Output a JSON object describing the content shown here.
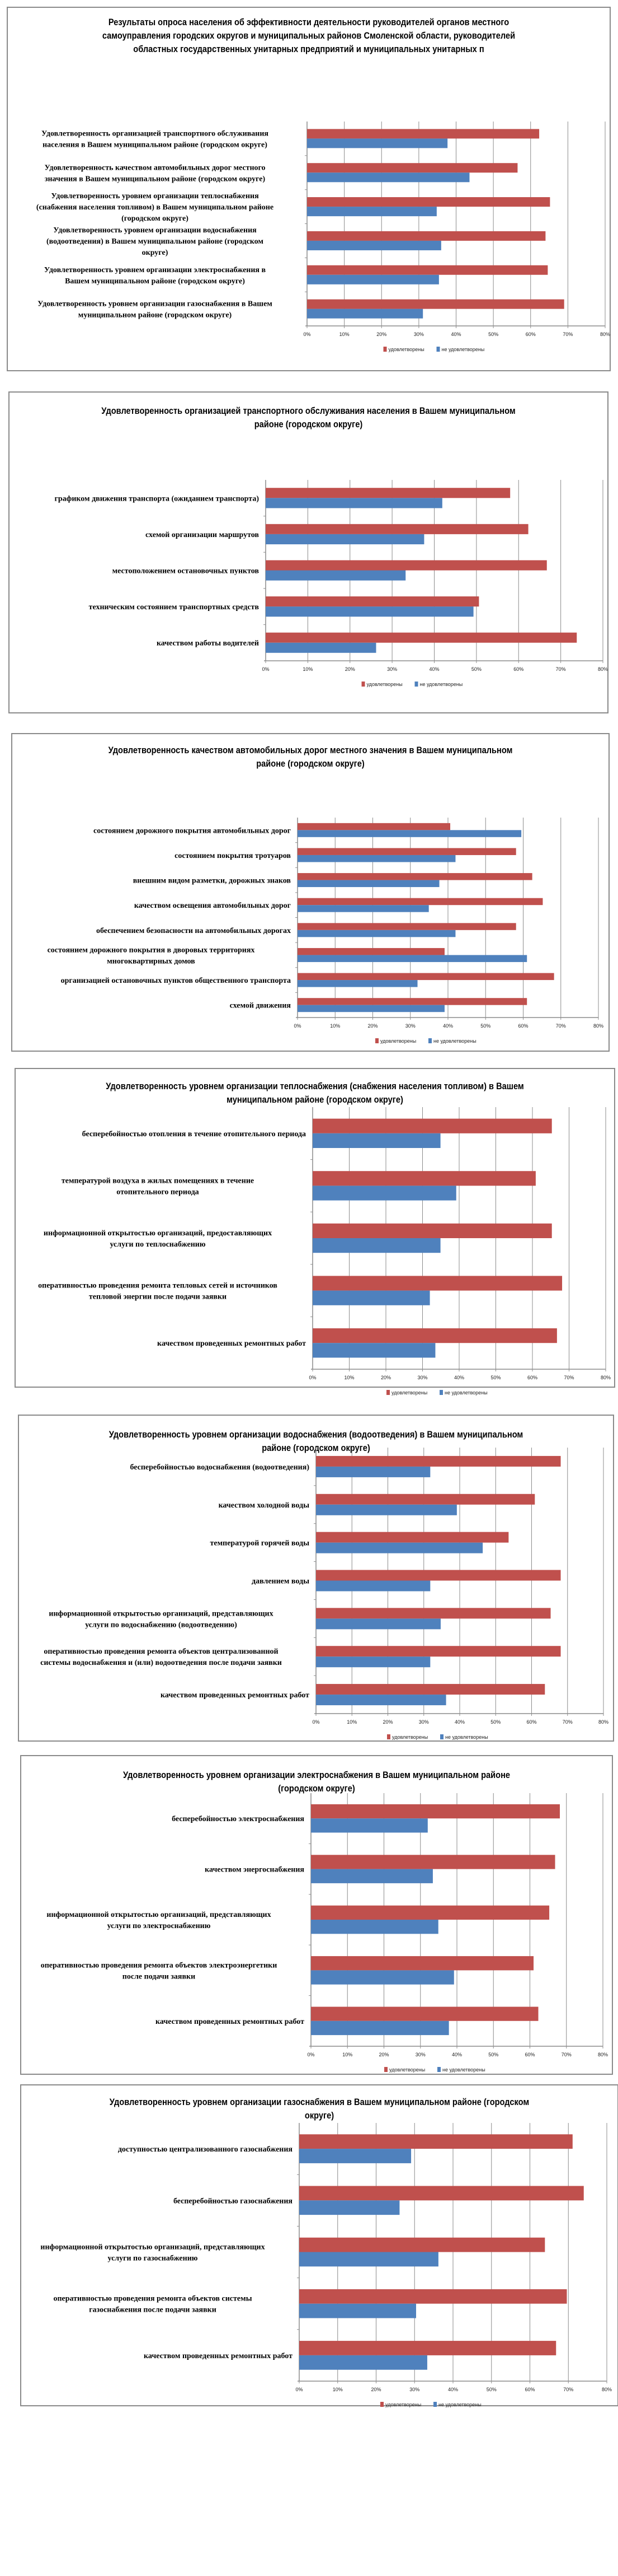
{
  "legend": {
    "satisfied": "удовлетворены",
    "not_satisfied": "не удовлетворены"
  },
  "colors": {
    "satisfied": "#c0504d",
    "not_satisfied": "#4f81bd",
    "grid": "#8c8c8c"
  },
  "chart_data": [
    {
      "type": "bar",
      "orientation": "horizontal",
      "title": "Результаты опроса населения об эффективности деятельности руководителей органов местного самоуправления городских округов и муниципальных районов Смоленской области, руководителей областных государственных унитарных предприятий и муниципальных унитарных п",
      "title_lines": [
        "Результаты опроса населения об эффективности деятельности руководителей органов местного",
        "самоуправления городских округов и муниципальных районов Смоленской области, руководителей",
        "областных государственных унитарных предприятий и муниципальных унитарных п"
      ],
      "xlim": [
        0,
        80
      ],
      "xticks": [
        "0%",
        "10%",
        "20%",
        "30%",
        "40%",
        "50%",
        "60%",
        "70%",
        "80%"
      ],
      "grid": true,
      "legend_position": "bottom",
      "categories": [
        [
          "Удовлетворенность организацией транспортного обслуживания",
          "населения в Вашем муниципальном районе (городском округе)"
        ],
        [
          "Удовлетворенность качеством автомобильных дорог местного",
          "значения в Вашем муниципальном районе (городском округе)"
        ],
        [
          "Удовлетворенность уровнем организации теплоснабжения",
          "(снабжения населения топливом) в Вашем муниципальном районе",
          "(городском округе)"
        ],
        [
          "Удовлетворенность уровнем организации водоснабжения",
          "(водоотведения) в Вашем муниципальном районе (городском",
          "округе)"
        ],
        [
          "Удовлетворенность уровнем организации электроснабжения в",
          "Вашем муниципальном районе (городском округе)"
        ],
        [
          "Удовлетворенность уровнем организации газоснабжения в Вашем",
          "муниципальном районе (городском округе)"
        ]
      ],
      "series": [
        {
          "name": "удовлетворены",
          "values": [
            62.3,
            56.5,
            65.2,
            64.0,
            64.6,
            69.0
          ]
        },
        {
          "name": "не удовлетворены",
          "values": [
            37.7,
            43.6,
            34.8,
            36.0,
            35.4,
            31.1
          ]
        }
      ]
    },
    {
      "type": "bar",
      "orientation": "horizontal",
      "title": "Удовлетворенность организацией транспортного обслуживания населения в Вашем муниципальном районе (городском округе)",
      "title_lines": [
        "Удовлетворенность организацией транспортного обслуживания населения в Вашем муниципальном",
        "районе (городском округе)"
      ],
      "xlim": [
        0,
        80
      ],
      "xticks": [
        "0%",
        "10%",
        "20%",
        "30%",
        "40%",
        "50%",
        "60%",
        "70%",
        "80%"
      ],
      "grid": true,
      "legend_position": "bottom",
      "categories": [
        [
          "графиком движения транспорта (ожиданием транспорта)"
        ],
        [
          "схемой организации маршрутов"
        ],
        [
          "местоположением остановочных пунктов"
        ],
        [
          "техническим состоянием транспортных средств"
        ],
        [
          "качеством работы водителей"
        ]
      ],
      "series": [
        {
          "name": "удовлетворены",
          "values": [
            58.0,
            62.3,
            66.7,
            50.6,
            73.8
          ]
        },
        {
          "name": "не удовлетворены",
          "values": [
            41.9,
            37.6,
            33.2,
            49.3,
            26.2
          ]
        }
      ]
    },
    {
      "type": "bar",
      "orientation": "horizontal",
      "title": "Удовлетворенность качеством автомобильных дорог местного значения в Вашем муниципальном районе (городском округе)",
      "title_lines": [
        "Удовлетворенность качеством автомобильных дорог местного значения в Вашем муниципальном",
        "районе (городском округе)"
      ],
      "xlim": [
        0,
        80
      ],
      "xticks": [
        "0%",
        "10%",
        "20%",
        "30%",
        "40%",
        "50%",
        "60%",
        "70%",
        "80%"
      ],
      "grid": true,
      "legend_position": "bottom",
      "categories": [
        [
          "состоянием дорожного покрытия автомобильных дорог"
        ],
        [
          "состоянием покрытия тротуаров"
        ],
        [
          "внешним видом разметки, дорожных знаков"
        ],
        [
          "качеством освещения автомобильных дорог"
        ],
        [
          "обеспечением безопасности на автомобильных дорогах"
        ],
        [
          "состоянием дорожного покрытия в дворовых территориях",
          "многоквартирных домов"
        ],
        [
          "организацией остановочных пунктов общественного транспорта"
        ],
        [
          "схемой движения"
        ]
      ],
      "series": [
        {
          "name": "удовлетворены",
          "values": [
            40.6,
            58.1,
            62.4,
            65.2,
            58.1,
            39.1,
            68.2,
            61.0
          ]
        },
        {
          "name": "не удовлетворены",
          "values": [
            59.5,
            42.0,
            37.7,
            34.9,
            42.0,
            61.0,
            31.9,
            39.1
          ]
        }
      ]
    },
    {
      "type": "bar",
      "orientation": "horizontal",
      "title": "Удовлетворенность уровнем организации теплоснабжения (снабжения населения топливом) в Вашем муниципальном районе (городском округе)",
      "title_lines": [
        "Удовлетворенность уровнем организации теплоснабжения (снабжения населения топливом) в Вашем",
        "муниципальном районе (городском округе)"
      ],
      "xlim": [
        0,
        80
      ],
      "xticks": [
        "0%",
        "10%",
        "20%",
        "30%",
        "40%",
        "50%",
        "60%",
        "70%",
        "80%"
      ],
      "grid": true,
      "legend_position": "bottom",
      "categories": [
        [
          "бесперебойностью отопления в течение отопительного периода"
        ],
        [
          "температурой воздуха в жилых помещениях в течение",
          "отопительного периода"
        ],
        [
          "информационной открытостью организаций, предоставляющих",
          "услуги по теплоснабжению"
        ],
        [
          "оперативностью проведения ремонта тепловых сетей и источников",
          "тепловой энергии после подачи заявки"
        ],
        [
          "качеством проведенных ремонтных работ"
        ]
      ],
      "series": [
        {
          "name": "удовлетворены",
          "values": [
            65.3,
            60.9,
            65.3,
            68.1,
            66.7
          ]
        },
        {
          "name": "не удовлетворены",
          "values": [
            34.9,
            39.2,
            34.9,
            32.0,
            33.5
          ]
        }
      ]
    },
    {
      "type": "bar",
      "orientation": "horizontal",
      "title": "Удовлетворенность уровнем организации водоснабжения (водоотведения) в Вашем муниципальном районе (городском округе)",
      "title_lines": [
        "Удовлетворенность уровнем организации водоснабжения (водоотведения) в Вашем муниципальном",
        "районе (городском округе)"
      ],
      "xlim": [
        0,
        80
      ],
      "xticks": [
        "0%",
        "10%",
        "20%",
        "30%",
        "40%",
        "50%",
        "60%",
        "70%",
        "80%"
      ],
      "grid": true,
      "legend_position": "bottom",
      "categories": [
        [
          "бесперебойностью водоснабжения (водоотведения)"
        ],
        [
          "качеством холодной воды"
        ],
        [
          "температурой горячей воды"
        ],
        [
          "давлением воды"
        ],
        [
          "информационной открытостью организаций, представляющих",
          "услуги по водоснабжению (водоотведению)"
        ],
        [
          "оперативностью проведения ремонта объектов централизованной",
          "системы водоснабжения и (или) водоотведения после подачи заявки"
        ],
        [
          "качеством проведенных ремонтных работ"
        ]
      ],
      "series": [
        {
          "name": "удовлетворены",
          "values": [
            68.1,
            60.9,
            53.6,
            68.1,
            65.3,
            68.1,
            63.7
          ]
        },
        {
          "name": "не удовлетворены",
          "values": [
            31.8,
            39.2,
            46.4,
            31.8,
            34.7,
            31.8,
            36.2
          ]
        }
      ]
    },
    {
      "type": "bar",
      "orientation": "horizontal",
      "title": "Удовлетворенность уровнем организации электроснабжения в Вашем муниципальном районе (городском округе)",
      "title_lines": [
        "Удовлетворенность уровнем организации электроснабжения в Вашем муниципальном районе",
        "(городском округе)"
      ],
      "xlim": [
        0,
        80
      ],
      "xticks": [
        "0%",
        "10%",
        "20%",
        "30%",
        "40%",
        "50%",
        "60%",
        "70%",
        "80%"
      ],
      "grid": true,
      "legend_position": "bottom",
      "categories": [
        [
          "бесперебойностью электроснабжения"
        ],
        [
          "качеством энергоснабжения"
        ],
        [
          "информационной открытостью организаций, представляющих",
          "услуги по электроснабжению"
        ],
        [
          "оперативностью проведения ремонта объектов электроэнергетики",
          "после подачи заявки"
        ],
        [
          "качеством проведенных ремонтных работ"
        ]
      ],
      "series": [
        {
          "name": "удовлетворены",
          "values": [
            68.2,
            66.9,
            65.3,
            61.0,
            62.3
          ]
        },
        {
          "name": "не удовлетворены",
          "values": [
            32.0,
            33.4,
            34.9,
            39.2,
            37.8
          ]
        }
      ]
    },
    {
      "type": "bar",
      "orientation": "horizontal",
      "title": "Удовлетворенность уровнем организации газоснабжения в Вашем муниципальном районе (городском округе)",
      "title_lines": [
        "Удовлетворенность уровнем организации газоснабжения в Вашем муниципальном районе (городском",
        "округе)"
      ],
      "xlim": [
        0,
        80
      ],
      "xticks": [
        "0%",
        "10%",
        "20%",
        "30%",
        "40%",
        "50%",
        "60%",
        "70%",
        "80%"
      ],
      "grid": true,
      "legend_position": "bottom",
      "categories": [
        [
          "доступностью централизованного газоснабжения"
        ],
        [
          "бесперебойностью газоснабжения"
        ],
        [
          "информационной открытостью организаций, представляющих",
          "услуги по газоснабжению"
        ],
        [
          "оперативностью проведения ремонта объектов системы",
          "газоснабжения после подачи заявки"
        ],
        [
          "качеством проведенных ремонтных работ"
        ]
      ],
      "series": [
        {
          "name": "удовлетворены",
          "values": [
            71.1,
            74.0,
            63.9,
            69.6,
            66.8
          ]
        },
        {
          "name": "не удовлетворены",
          "values": [
            29.1,
            26.1,
            36.2,
            30.4,
            33.3
          ]
        }
      ]
    }
  ]
}
